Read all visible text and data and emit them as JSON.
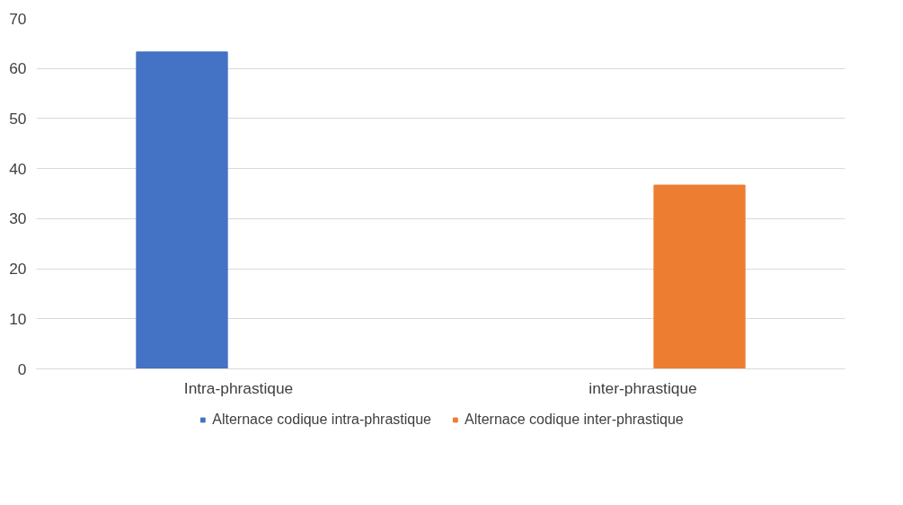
{
  "chart_data": {
    "type": "bar",
    "categories": [
      "Intra-phrastique",
      "inter-phrastique"
    ],
    "series": [
      {
        "name": "Alternace codique intra-phrastique",
        "color": "#4472c4",
        "values": [
          63.3,
          null
        ]
      },
      {
        "name": "Alternace codique inter-phrastique",
        "color": "#ed7d31",
        "values": [
          null,
          36.7
        ]
      }
    ],
    "ylim": [
      0,
      70
    ],
    "yticks": [
      0,
      10,
      20,
      30,
      40,
      50,
      60,
      70
    ],
    "grid": "y",
    "legend": "bottom"
  }
}
